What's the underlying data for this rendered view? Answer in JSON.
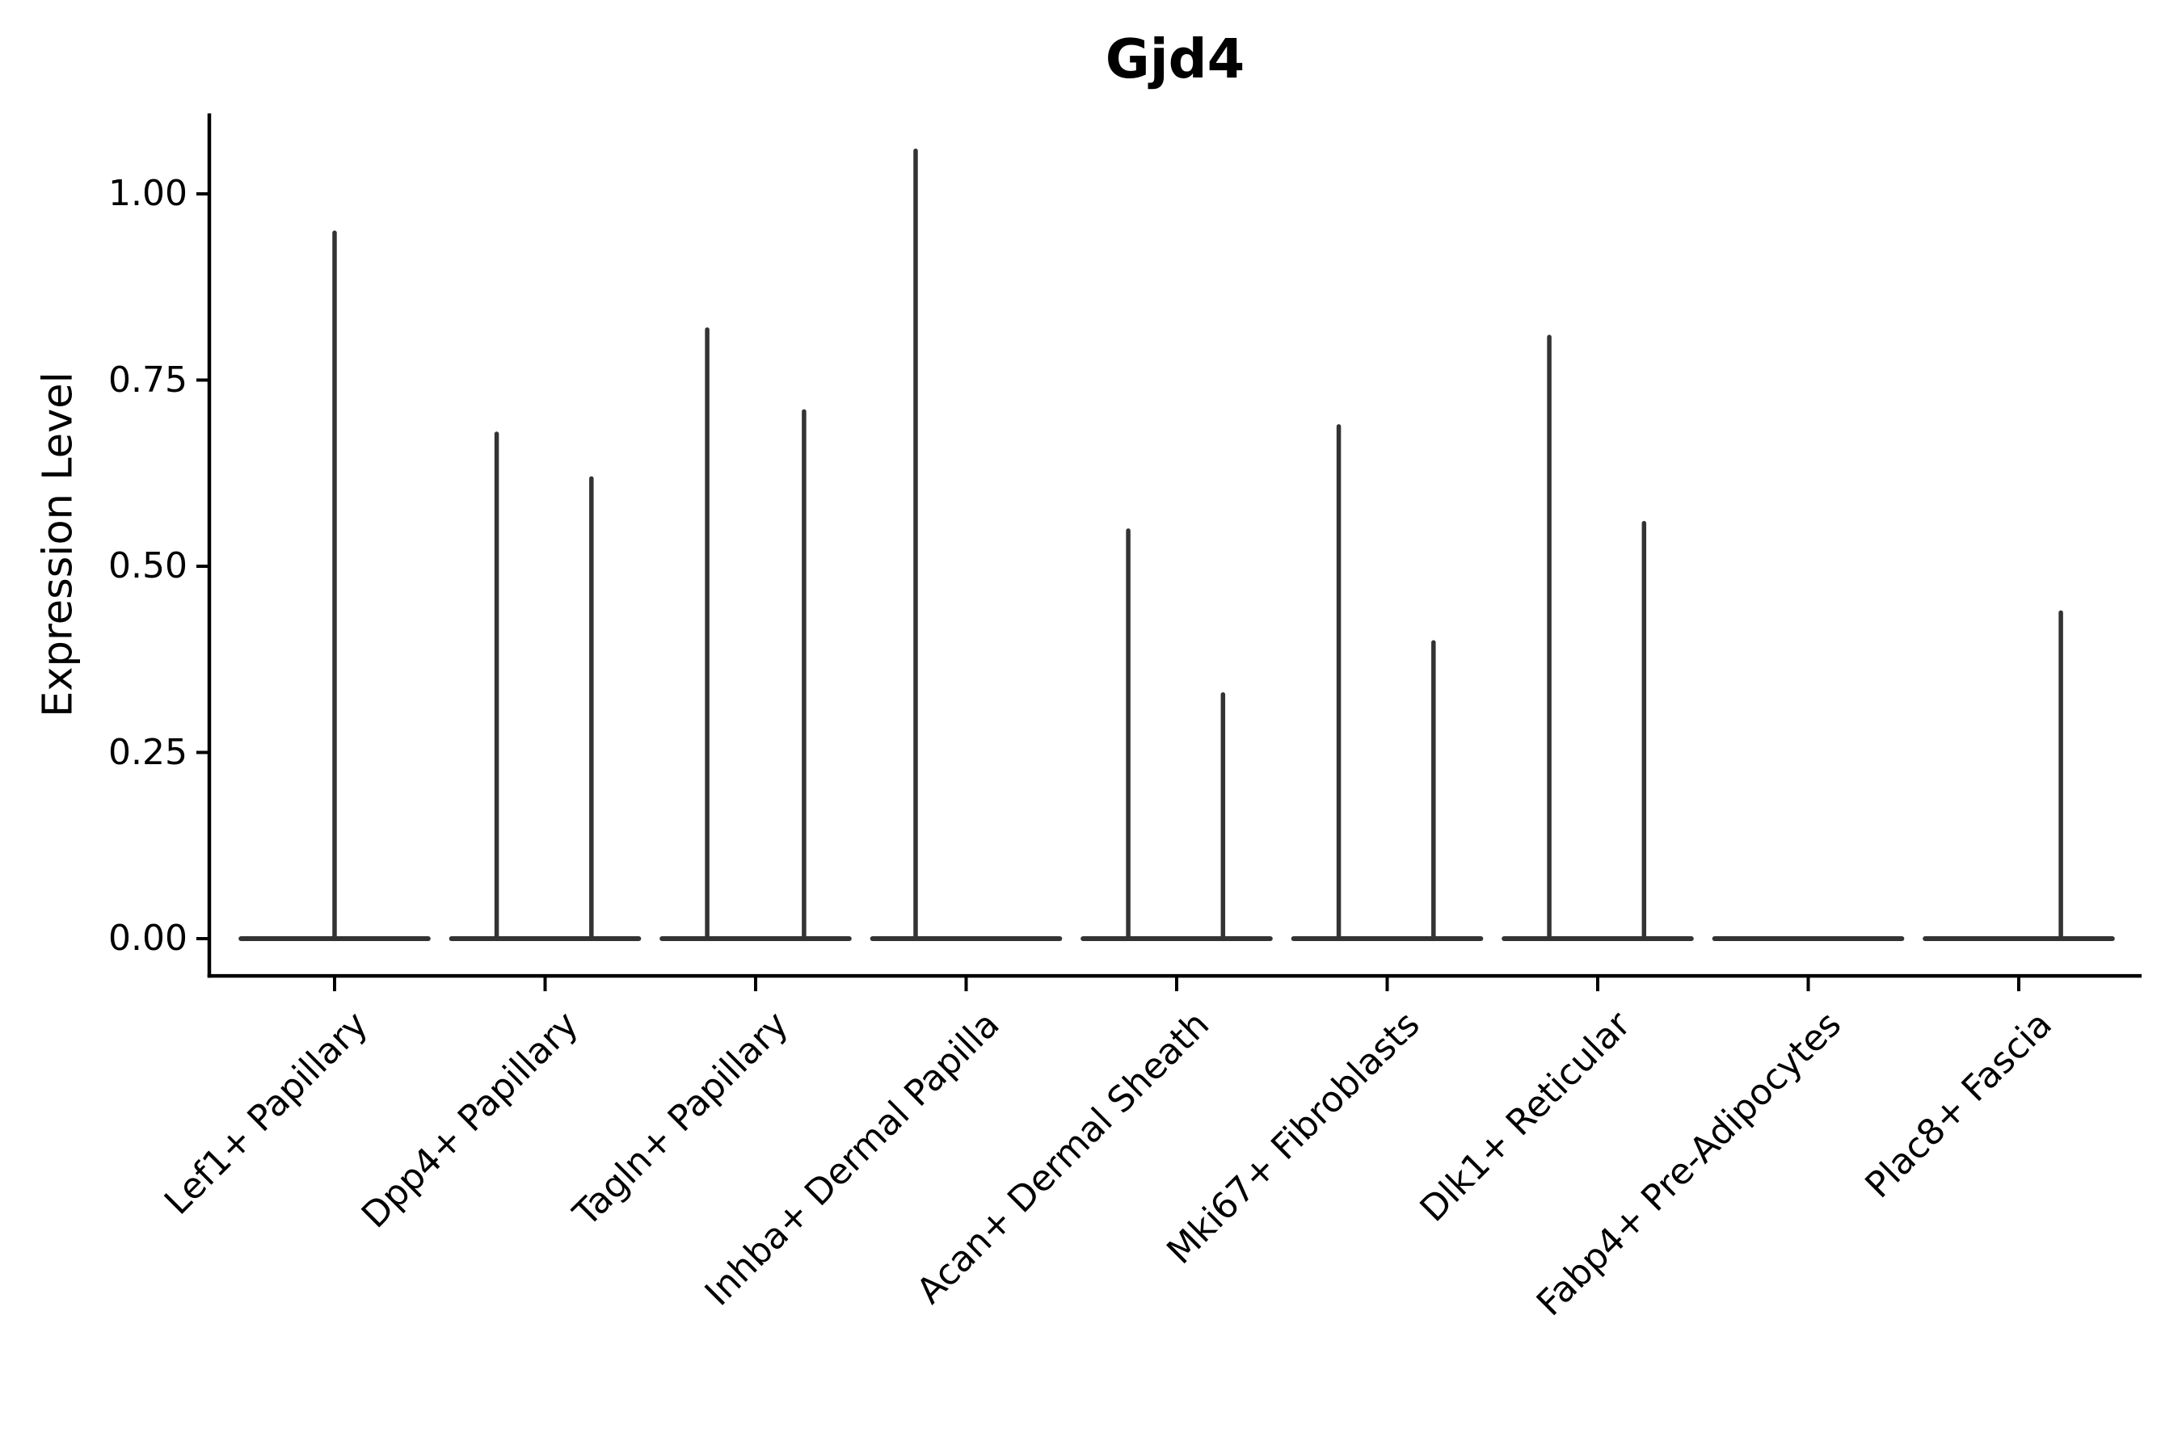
{
  "chart_data": {
    "type": "violin",
    "title": "Gjd4",
    "xlabel": "",
    "ylabel": "Expression Level",
    "ylim": [
      -0.05,
      1.108
    ],
    "grid": false,
    "legend": "none",
    "yticks": [
      {
        "value": 0.0,
        "label": "0.00"
      },
      {
        "value": 0.25,
        "label": "0.25"
      },
      {
        "value": 0.5,
        "label": "0.50"
      },
      {
        "value": 0.75,
        "label": "0.75"
      },
      {
        "value": 1.0,
        "label": "1.00"
      }
    ],
    "categories": [
      "Lef1+ Papillary",
      "Dpp4+ Papillary",
      "Tagln+ Papillary",
      "Inhba+ Dermal Papilla",
      "Acan+ Dermal Sheath",
      "Mki67+ Fibroblasts",
      "Dlk1+ Reticular",
      "Fabp4+ Pre-Adipocytes",
      "Plac8+ Fascia"
    ],
    "violins": [
      {
        "category": "Lef1+ Papillary",
        "base_value": 0.0,
        "spikes": [
          {
            "dx": 0.0,
            "value": 0.95
          }
        ]
      },
      {
        "category": "Dpp4+ Papillary",
        "base_value": 0.0,
        "spikes": [
          {
            "dx": -0.23,
            "value": 0.68
          },
          {
            "dx": 0.22,
            "value": 0.62
          }
        ]
      },
      {
        "category": "Tagln+ Papillary",
        "base_value": 0.0,
        "spikes": [
          {
            "dx": -0.23,
            "value": 0.82
          },
          {
            "dx": 0.23,
            "value": 0.71
          }
        ]
      },
      {
        "category": "Inhba+ Dermal Papilla",
        "base_value": 0.0,
        "spikes": [
          {
            "dx": -0.24,
            "value": 1.06
          }
        ]
      },
      {
        "category": "Acan+ Dermal Sheath",
        "base_value": 0.0,
        "spikes": [
          {
            "dx": -0.23,
            "value": 0.55
          },
          {
            "dx": 0.22,
            "value": 0.33
          }
        ]
      },
      {
        "category": "Mki67+ Fibroblasts",
        "base_value": 0.0,
        "spikes": [
          {
            "dx": -0.23,
            "value": 0.69
          },
          {
            "dx": 0.22,
            "value": 0.4
          }
        ]
      },
      {
        "category": "Dlk1+ Reticular",
        "base_value": 0.0,
        "spikes": [
          {
            "dx": -0.23,
            "value": 0.81
          },
          {
            "dx": 0.22,
            "value": 0.56
          }
        ]
      },
      {
        "category": "Fabp4+ Pre-Adipocytes",
        "base_value": 0.0,
        "spikes": []
      },
      {
        "category": "Plac8+ Fascia",
        "base_value": 0.0,
        "spikes": [
          {
            "dx": 0.2,
            "value": 0.44
          }
        ]
      }
    ],
    "violin_halfwidth": 0.46,
    "colors": {
      "violin": "#333333",
      "axis": "#000000",
      "text": "#000000",
      "background": "#ffffff"
    }
  }
}
